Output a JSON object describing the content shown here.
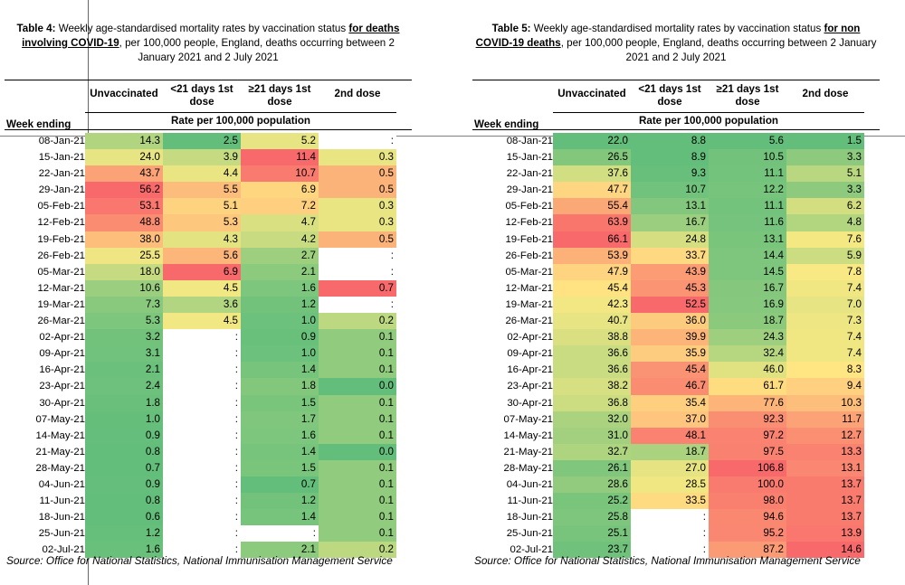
{
  "table4": {
    "caption_bold": "Table 4:",
    "caption_text": " Weekly age-standardised mortality rates by vaccination status ",
    "caption_underline": "for deaths involving COVID-19",
    "caption_rest": ", per 100,000 people, England, deaths occurring between 2 January 2021 and 2 July 2021",
    "columns": [
      "Unvaccinated",
      "<21 days 1st dose",
      "≥21 days 1st dose",
      "2nd dose"
    ],
    "rate_header": "Rate per 100,000 population",
    "week_header": "Week ending",
    "source": "Source: Office for National Statistics, National Immunisation Management Service",
    "rows": [
      {
        "week": "08-Jan-21",
        "v": [
          "14.3",
          "2.5",
          "5.2",
          ":"
        ]
      },
      {
        "week": "15-Jan-21",
        "v": [
          "24.0",
          "3.9",
          "11.4",
          "0.3"
        ]
      },
      {
        "week": "22-Jan-21",
        "v": [
          "43.7",
          "4.4",
          "10.7",
          "0.5"
        ]
      },
      {
        "week": "29-Jan-21",
        "v": [
          "56.2",
          "5.5",
          "6.9",
          "0.5"
        ]
      },
      {
        "week": "05-Feb-21",
        "v": [
          "53.1",
          "5.1",
          "7.2",
          "0.3"
        ]
      },
      {
        "week": "12-Feb-21",
        "v": [
          "48.8",
          "5.3",
          "4.7",
          "0.3"
        ]
      },
      {
        "week": "19-Feb-21",
        "v": [
          "38.0",
          "4.3",
          "4.2",
          "0.5"
        ]
      },
      {
        "week": "26-Feb-21",
        "v": [
          "25.5",
          "5.6",
          "2.7",
          ":"
        ]
      },
      {
        "week": "05-Mar-21",
        "v": [
          "18.0",
          "6.9",
          "2.1",
          ":"
        ]
      },
      {
        "week": "12-Mar-21",
        "v": [
          "10.6",
          "4.5",
          "1.6",
          "0.7"
        ]
      },
      {
        "week": "19-Mar-21",
        "v": [
          "7.3",
          "3.6",
          "1.2",
          ":"
        ]
      },
      {
        "week": "26-Mar-21",
        "v": [
          "5.3",
          "4.5",
          "1.0",
          "0.2"
        ]
      },
      {
        "week": "02-Apr-21",
        "v": [
          "3.2",
          ":",
          "0.9",
          "0.1"
        ]
      },
      {
        "week": "09-Apr-21",
        "v": [
          "3.1",
          ":",
          "1.0",
          "0.1"
        ]
      },
      {
        "week": "16-Apr-21",
        "v": [
          "2.1",
          ":",
          "1.4",
          "0.1"
        ]
      },
      {
        "week": "23-Apr-21",
        "v": [
          "2.4",
          ":",
          "1.8",
          "0.0"
        ]
      },
      {
        "week": "30-Apr-21",
        "v": [
          "1.8",
          ":",
          "1.5",
          "0.1"
        ]
      },
      {
        "week": "07-May-21",
        "v": [
          "1.0",
          ":",
          "1.7",
          "0.1"
        ]
      },
      {
        "week": "14-May-21",
        "v": [
          "0.9",
          ":",
          "1.6",
          "0.1"
        ]
      },
      {
        "week": "21-May-21",
        "v": [
          "0.8",
          ":",
          "1.4",
          "0.0"
        ]
      },
      {
        "week": "28-May-21",
        "v": [
          "0.7",
          ":",
          "1.5",
          "0.1"
        ]
      },
      {
        "week": "04-Jun-21",
        "v": [
          "0.9",
          ":",
          "0.7",
          "0.1"
        ]
      },
      {
        "week": "11-Jun-21",
        "v": [
          "0.8",
          ":",
          "1.2",
          "0.1"
        ]
      },
      {
        "week": "18-Jun-21",
        "v": [
          "0.6",
          ":",
          "1.4",
          "0.1"
        ]
      },
      {
        "week": "25-Jun-21",
        "v": [
          "1.2",
          ":",
          ":",
          "0.1"
        ]
      },
      {
        "week": "02-Jul-21",
        "v": [
          "1.6",
          ":",
          "2.1",
          "0.2"
        ]
      }
    ]
  },
  "table5": {
    "caption_bold": "Table 5:",
    "caption_text": " Weekly age-standardised mortality rates by vaccination status ",
    "caption_underline": "for non COVID-19 deaths",
    "caption_rest": ", per 100,000 people, England, deaths occurring between 2 January 2021 and 2 July 2021",
    "columns": [
      "Unvaccinated",
      "<21 days 1st dose",
      "≥21 days 1st dose",
      "2nd dose"
    ],
    "rate_header": "Rate per 100,000 population",
    "week_header": "Week ending",
    "source": "Source: Office for National Statistics, National Immunisation Management Service",
    "rows": [
      {
        "week": "08-Jan-21",
        "v": [
          "22.0",
          "8.8",
          "5.6",
          "1.5"
        ]
      },
      {
        "week": "15-Jan-21",
        "v": [
          "26.5",
          "8.9",
          "10.5",
          "3.3"
        ]
      },
      {
        "week": "22-Jan-21",
        "v": [
          "37.6",
          "9.3",
          "11.1",
          "5.1"
        ]
      },
      {
        "week": "29-Jan-21",
        "v": [
          "47.7",
          "10.7",
          "12.2",
          "3.3"
        ]
      },
      {
        "week": "05-Feb-21",
        "v": [
          "55.4",
          "13.1",
          "11.1",
          "6.2"
        ]
      },
      {
        "week": "12-Feb-21",
        "v": [
          "63.9",
          "16.7",
          "11.6",
          "4.8"
        ]
      },
      {
        "week": "19-Feb-21",
        "v": [
          "66.1",
          "24.8",
          "13.1",
          "7.6"
        ]
      },
      {
        "week": "26-Feb-21",
        "v": [
          "53.9",
          "33.7",
          "14.4",
          "5.9"
        ]
      },
      {
        "week": "05-Mar-21",
        "v": [
          "47.9",
          "43.9",
          "14.5",
          "7.8"
        ]
      },
      {
        "week": "12-Mar-21",
        "v": [
          "45.4",
          "45.3",
          "16.7",
          "7.4"
        ]
      },
      {
        "week": "19-Mar-21",
        "v": [
          "42.3",
          "52.5",
          "16.9",
          "7.0"
        ]
      },
      {
        "week": "26-Mar-21",
        "v": [
          "40.7",
          "36.0",
          "18.7",
          "7.3"
        ]
      },
      {
        "week": "02-Apr-21",
        "v": [
          "38.8",
          "39.9",
          "24.3",
          "7.4"
        ]
      },
      {
        "week": "09-Apr-21",
        "v": [
          "36.6",
          "35.9",
          "32.4",
          "7.4"
        ]
      },
      {
        "week": "16-Apr-21",
        "v": [
          "36.6",
          "45.4",
          "46.0",
          "8.3"
        ]
      },
      {
        "week": "23-Apr-21",
        "v": [
          "38.2",
          "46.7",
          "61.7",
          "9.4"
        ]
      },
      {
        "week": "30-Apr-21",
        "v": [
          "36.8",
          "35.4",
          "77.6",
          "10.3"
        ]
      },
      {
        "week": "07-May-21",
        "v": [
          "32.0",
          "37.0",
          "92.3",
          "11.7"
        ]
      },
      {
        "week": "14-May-21",
        "v": [
          "31.0",
          "48.1",
          "97.2",
          "12.7"
        ]
      },
      {
        "week": "21-May-21",
        "v": [
          "32.7",
          "18.7",
          "97.5",
          "13.3"
        ]
      },
      {
        "week": "28-May-21",
        "v": [
          "26.1",
          "27.0",
          "106.8",
          "13.1"
        ]
      },
      {
        "week": "04-Jun-21",
        "v": [
          "28.6",
          "28.5",
          "100.0",
          "13.7"
        ]
      },
      {
        "week": "11-Jun-21",
        "v": [
          "25.2",
          "33.5",
          "98.0",
          "13.7"
        ]
      },
      {
        "week": "18-Jun-21",
        "v": [
          "25.8",
          ":",
          "94.6",
          "13.7"
        ]
      },
      {
        "week": "25-Jun-21",
        "v": [
          "25.1",
          ":",
          "95.2",
          "13.9"
        ]
      },
      {
        "week": "02-Jul-21",
        "v": [
          "23.7",
          ":",
          "87.2",
          "14.6"
        ]
      }
    ]
  },
  "colors": {
    "green": "#63be7b",
    "yellow": "#ffeb84",
    "red": "#f8696b"
  }
}
